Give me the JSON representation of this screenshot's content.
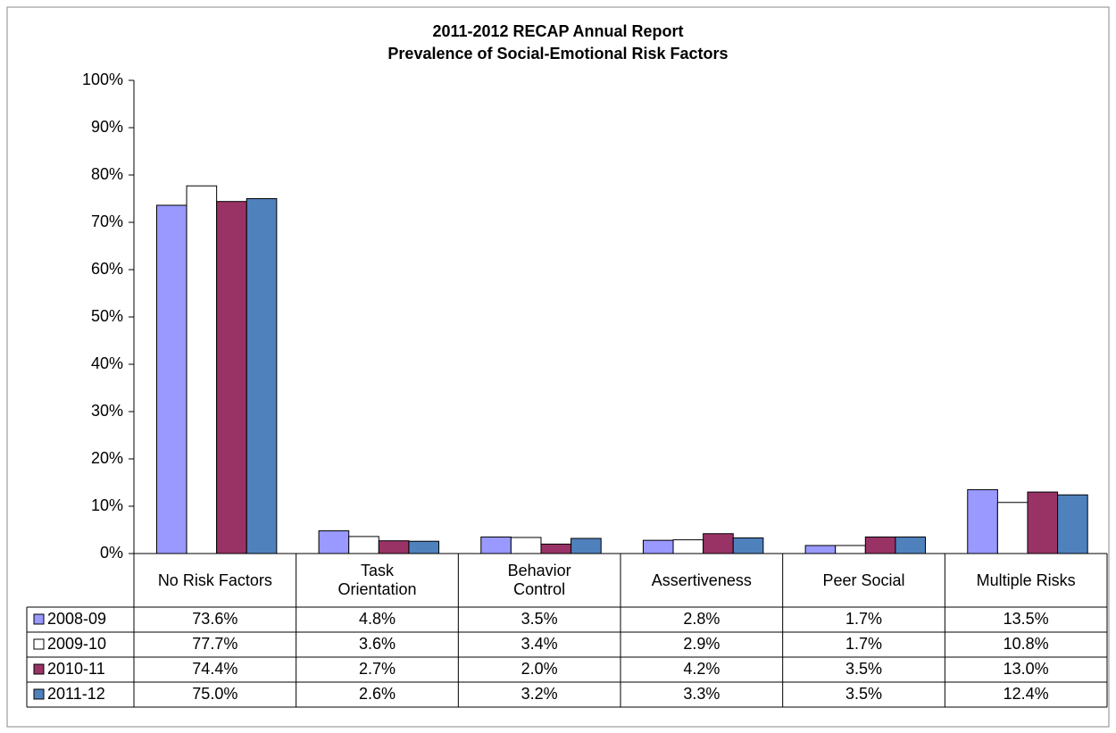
{
  "chart_data": {
    "type": "bar",
    "title": "2011-2012 RECAP Annual Report",
    "subtitle": "Prevalence of Social-Emotional Risk Factors",
    "categories": [
      "No Risk Factors",
      "Task\nOrientation",
      "Behavior\nControl",
      "Assertiveness",
      "Peer Social",
      "Multiple Risks"
    ],
    "series": [
      {
        "name": "2008-09",
        "color": "#9999ff",
        "values": [
          73.6,
          4.8,
          3.5,
          2.8,
          1.7,
          13.5
        ],
        "value_labels": [
          "73.6%",
          "4.8%",
          "3.5%",
          "2.8%",
          "1.7%",
          "13.5%"
        ]
      },
      {
        "name": "2009-10",
        "color": "#ffffff",
        "values": [
          77.7,
          3.6,
          3.4,
          2.9,
          1.7,
          10.8
        ],
        "value_labels": [
          "77.7%",
          "3.6%",
          "3.4%",
          "2.9%",
          "1.7%",
          "10.8%"
        ]
      },
      {
        "name": "2010-11",
        "color": "#993366",
        "values": [
          74.4,
          2.7,
          2.0,
          4.2,
          3.5,
          13.0
        ],
        "value_labels": [
          "74.4%",
          "2.7%",
          "2.0%",
          "4.2%",
          "3.5%",
          "13.0%"
        ]
      },
      {
        "name": "2011-12",
        "color": "#4f81bd",
        "values": [
          75.0,
          2.6,
          3.2,
          3.3,
          3.5,
          12.4
        ],
        "value_labels": [
          "75.0%",
          "2.6%",
          "3.2%",
          "3.3%",
          "3.5%",
          "12.4%"
        ]
      }
    ],
    "ylim": [
      0,
      100
    ],
    "yticks": [
      {
        "value": 0,
        "label": "0%"
      },
      {
        "value": 10,
        "label": "10%"
      },
      {
        "value": 20,
        "label": "20%"
      },
      {
        "value": 30,
        "label": "30%"
      },
      {
        "value": 40,
        "label": "40%"
      },
      {
        "value": 50,
        "label": "50%"
      },
      {
        "value": 60,
        "label": "60%"
      },
      {
        "value": 70,
        "label": "70%"
      },
      {
        "value": 80,
        "label": "80%"
      },
      {
        "value": 90,
        "label": "90%"
      },
      {
        "value": 100,
        "label": "100%"
      }
    ],
    "grid": false
  }
}
